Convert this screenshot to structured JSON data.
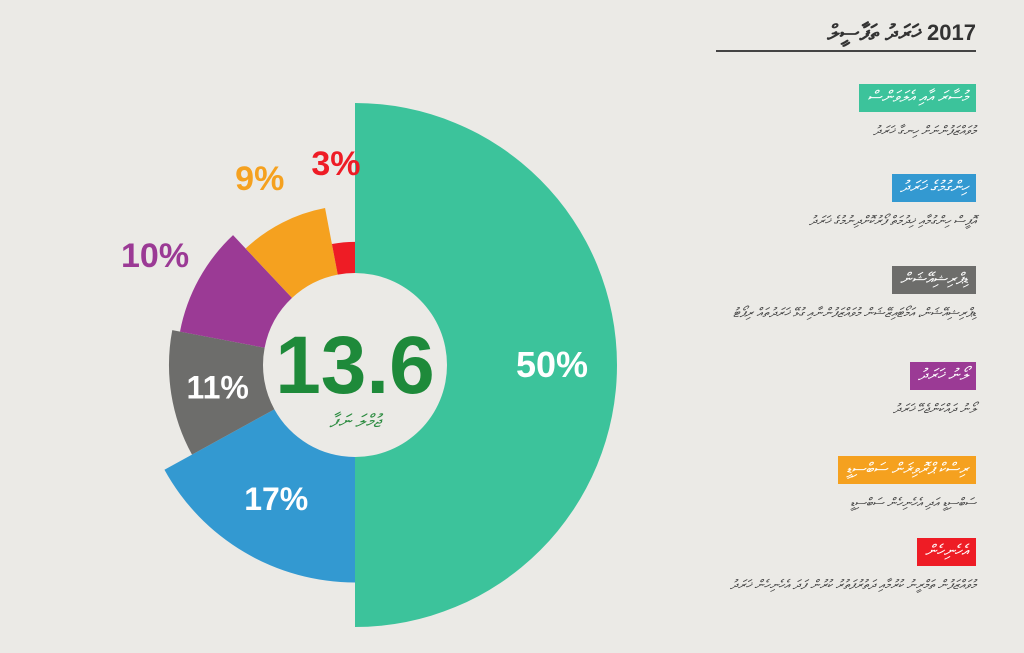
{
  "chart_data": {
    "type": "pie",
    "center_value": "13.6",
    "center_label": "ޖުމްލަ ނަފާ",
    "slices": [
      {
        "label": "50%",
        "value": 50,
        "color": "#3cc39b",
        "radius_scale": 1.0
      },
      {
        "label": "17%",
        "value": 17,
        "color": "#3399d1",
        "radius_scale": 0.83
      },
      {
        "label": "11%",
        "value": 11,
        "color": "#6d6d6b",
        "radius_scale": 0.71
      },
      {
        "label": "10%",
        "value": 10,
        "color": "#9b3a95",
        "radius_scale": 0.68
      },
      {
        "label": "9%",
        "value": 9,
        "color": "#f5a11f",
        "radius_scale": 0.61
      },
      {
        "label": "3%",
        "value": 3,
        "color": "#ee1c25",
        "radius_scale": 0.47
      }
    ]
  },
  "legend": {
    "title": "2017 ޚަރަދު ތަފާސީލް",
    "items": [
      {
        "tag": "މުސާރަ އާއި އެލަވަންސް",
        "color": "#3cc39b",
        "desc": "މުވައްޒަފުންނަށް ހިނގާ ޚަރަދު"
      },
      {
        "tag": "ހިންގުމުގެ ޚަރަދު",
        "color": "#3399d1",
        "desc": "އޮފީސް ހިންގުމާއި ޚިދުމަތް ފޯރުކޮށްދިނުމުގެ ޚަރަދު"
      },
      {
        "tag": "ޑިޕްރިޝިއޭޝަން",
        "color": "#6d6d6b",
        "desc": "ޑިޕްރިޝިއޭޝަން، އަމޯޓައިޒޭޝަން މުވައްޒަފުންނާއި ގުޅޭ ޚަރަދުތައް ރިޕޯޓު"
      },
      {
        "tag": "ލޯނު ޚަރަދު",
        "color": "#9b3a95",
        "desc": "ލޯނު ދައްކަންޖެހޭ ޚަރަދު"
      },
      {
        "tag": "ރިސްކް ޕްރޮވިޜަން ސަބްސިޑީ",
        "color": "#f5a11f",
        "desc": "ސަބްސިޑީ އަދި އެހެނިހެން ސަބްސިޑީ"
      },
      {
        "tag": "އެހެނިހެން",
        "color": "#ee1c25",
        "desc": "މުވައްޒަފުން ތަމްރީނު ކުރުމާއި ދަތުރުފަތުރު ކުރުން ފަދަ އެހެނިހެން ޚަރަދު"
      }
    ]
  }
}
